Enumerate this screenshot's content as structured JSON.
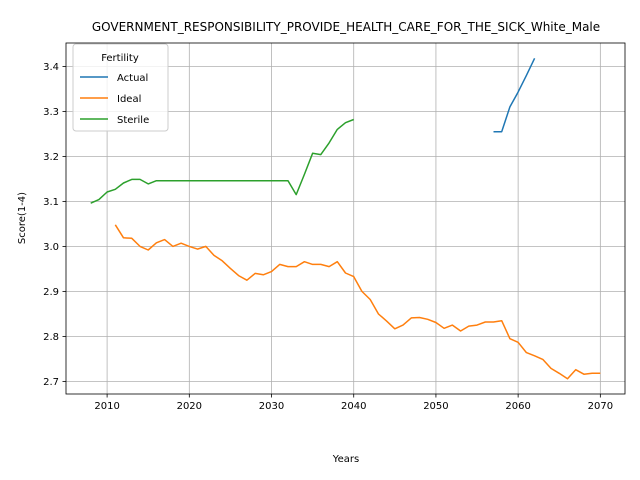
{
  "chart_data": {
    "type": "line",
    "title": "GOVERNMENT_RESPONSIBILITY_PROVIDE_HEALTH_CARE_FOR_THE_SICK_White_Male",
    "xlabel": "Years",
    "ylabel": "Score(1-4)",
    "xlim": [
      2005,
      2073
    ],
    "ylim": [
      2.672,
      3.452
    ],
    "xticks": [
      2010,
      2020,
      2030,
      2040,
      2050,
      2060,
      2070
    ],
    "yticks": [
      2.7,
      2.8,
      2.9,
      3.0,
      3.1,
      3.2,
      3.3,
      3.4
    ],
    "xtick_labels": [
      "2010",
      "2020",
      "2030",
      "2040",
      "2050",
      "2060",
      "2070"
    ],
    "ytick_labels": [
      "2.7",
      "2.8",
      "2.9",
      "3.0",
      "3.1",
      "3.2",
      "3.3",
      "3.4"
    ],
    "grid": true,
    "legend": {
      "title": "Fertility",
      "placement": "top-left"
    },
    "series": [
      {
        "name": "Actual",
        "color": "#1f77b4",
        "x": [
          2057,
          2058,
          2059,
          2060,
          2061,
          2062
        ],
        "y": [
          3.255,
          3.255,
          3.31,
          3.343,
          3.38,
          3.418
        ]
      },
      {
        "name": "Ideal",
        "color": "#ff7f0e",
        "x": [
          2011,
          2012,
          2013,
          2014,
          2015,
          2016,
          2017,
          2018,
          2019,
          2020,
          2021,
          2022,
          2023,
          2024,
          2025,
          2026,
          2027,
          2028,
          2029,
          2030,
          2031,
          2032,
          2033,
          2034,
          2035,
          2036,
          2037,
          2038,
          2039,
          2040,
          2041,
          2042,
          2043,
          2044,
          2045,
          2046,
          2047,
          2048,
          2049,
          2050,
          2051,
          2052,
          2053,
          2054,
          2055,
          2056,
          2057,
          2058,
          2059,
          2060,
          2061,
          2062,
          2063,
          2064,
          2065,
          2066,
          2067,
          2068,
          2069,
          2070
        ],
        "y": [
          3.048,
          3.019,
          3.018,
          3.0,
          2.992,
          3.008,
          3.015,
          3.0,
          3.007,
          3.0,
          2.994,
          3.0,
          2.98,
          2.968,
          2.951,
          2.935,
          2.925,
          2.94,
          2.937,
          2.944,
          2.96,
          2.955,
          2.955,
          2.966,
          2.96,
          2.96,
          2.955,
          2.966,
          2.941,
          2.933,
          2.9,
          2.882,
          2.85,
          2.834,
          2.817,
          2.825,
          2.841,
          2.842,
          2.838,
          2.831,
          2.818,
          2.825,
          2.812,
          2.823,
          2.825,
          2.832,
          2.832,
          2.835,
          2.795,
          2.787,
          2.764,
          2.757,
          2.749,
          2.729,
          2.718,
          2.706,
          2.726,
          2.716,
          2.718,
          2.718
        ]
      },
      {
        "name": "Sterile",
        "color": "#2ca02c",
        "x": [
          2008,
          2009,
          2010,
          2011,
          2012,
          2013,
          2014,
          2015,
          2016,
          2017,
          2018,
          2019,
          2020,
          2021,
          2022,
          2023,
          2024,
          2025,
          2026,
          2027,
          2028,
          2029,
          2030,
          2031,
          2032,
          2033,
          2034,
          2035,
          2036,
          2037,
          2038,
          2039,
          2040
        ],
        "y": [
          3.096,
          3.104,
          3.121,
          3.127,
          3.141,
          3.149,
          3.149,
          3.139,
          3.146,
          3.146,
          3.146,
          3.146,
          3.146,
          3.146,
          3.146,
          3.146,
          3.146,
          3.146,
          3.146,
          3.146,
          3.146,
          3.146,
          3.146,
          3.146,
          3.146,
          3.115,
          3.16,
          3.207,
          3.204,
          3.23,
          3.26,
          3.275,
          3.282
        ]
      }
    ]
  }
}
